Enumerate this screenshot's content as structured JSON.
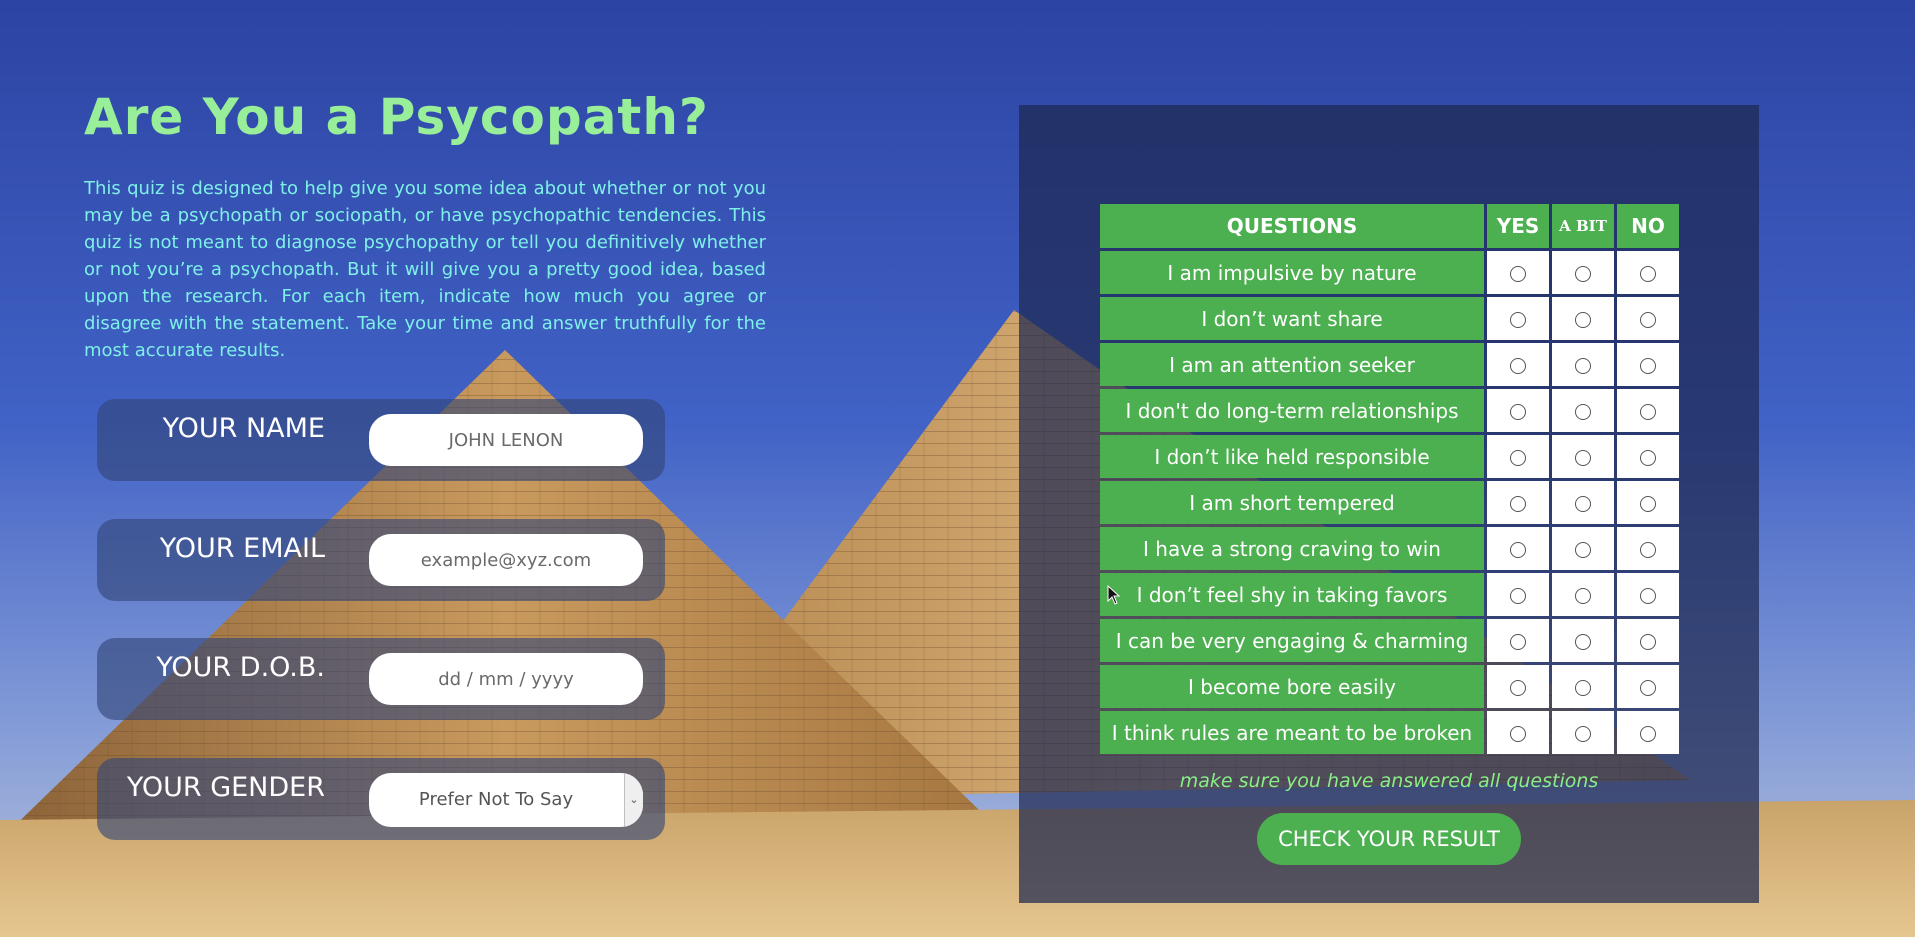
{
  "title": "Are You a Psycopath?",
  "intro": "This quiz is designed to help give you some idea about whether or not you may be a psychopath or sociopath, or have psychopathic tendencies. This quiz is not meant to diagnose psychopathy or tell you definitively whether or not you’re a psychopath. But it will give you a pretty good idea, based upon the research. For each item, indicate how much you agree or disagree with the statement. Take your time and answer truthfully for the most accurate results.",
  "form": {
    "name": {
      "label": "YOUR NAME",
      "placeholder": "JOHN LENON"
    },
    "email": {
      "label": "YOUR EMAIL",
      "placeholder": "example@xyz.com"
    },
    "dob": {
      "label": "YOUR D.O.B.",
      "placeholder": "dd / mm / yyyy"
    },
    "gender": {
      "label": "YOUR GENDER",
      "selected": "Prefer Not To Say"
    }
  },
  "quiz": {
    "headers": {
      "question": "QUESTIONS",
      "yes": "YES",
      "abit": "A BIT",
      "no": "NO"
    },
    "questions": [
      "I am impulsive by nature",
      "I don’t want share",
      "I am an attention seeker",
      "I don't do long-term relationships",
      "I don’t like held responsible",
      "I am short tempered",
      "I have a strong craving to win",
      "I don’t feel shy in taking favors",
      "I can be very engaging & charming",
      "I become bore easily",
      "I think rules are meant to be broken"
    ],
    "note": "make sure you have answered all questions",
    "submit_label": "CHECK YOUR RESULT"
  },
  "colors": {
    "accent_green": "#4caf50",
    "title_green": "#99ee99",
    "intro_text": "#7ef0e8"
  }
}
